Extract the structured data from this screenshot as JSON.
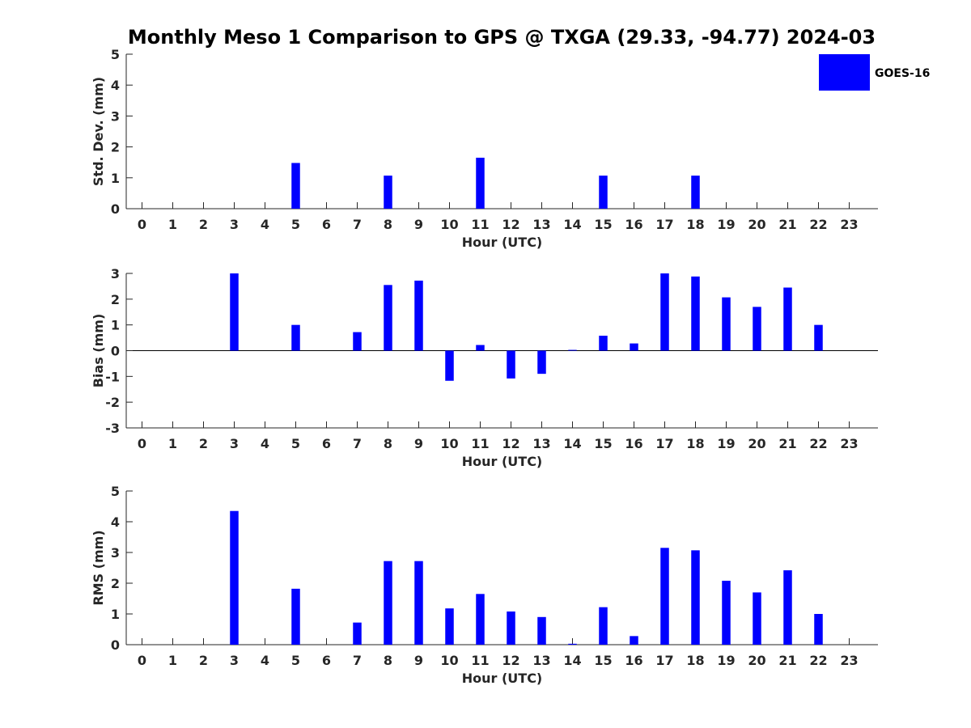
{
  "title": "Monthly Meso 1 Comparison to GPS @ TXGA (29.33, -94.77) 2024-03",
  "legend": {
    "label": "GOES-16",
    "color": "#0000ff"
  },
  "chart_data": [
    {
      "type": "bar",
      "name": "std-dev",
      "title": "Monthly Meso 1 Comparison to GPS @ TXGA (29.33, -94.77) 2024-03",
      "xlabel": "Hour (UTC)",
      "ylabel": "Std. Dev. (mm)",
      "ylim": [
        0,
        5
      ],
      "yticks": [
        "0",
        "1",
        "2",
        "3",
        "4",
        "5"
      ],
      "categories": [
        "0",
        "1",
        "2",
        "3",
        "4",
        "5",
        "6",
        "7",
        "8",
        "9",
        "10",
        "11",
        "12",
        "13",
        "14",
        "15",
        "16",
        "17",
        "18",
        "19",
        "20",
        "21",
        "22",
        "23"
      ],
      "series": [
        {
          "name": "GOES-16",
          "values": [
            null,
            null,
            null,
            0,
            null,
            1.48,
            null,
            0,
            1.07,
            0,
            null,
            1.65,
            0,
            0,
            0,
            1.07,
            0,
            0,
            1.07,
            0,
            0,
            0,
            0,
            null
          ]
        }
      ]
    },
    {
      "type": "bar",
      "name": "bias",
      "xlabel": "Hour (UTC)",
      "ylabel": "Bias (mm)",
      "ylim": [
        -3,
        3
      ],
      "yticks": [
        "-3",
        "-2",
        "-1",
        "0",
        "1",
        "2",
        "3"
      ],
      "categories": [
        "0",
        "1",
        "2",
        "3",
        "4",
        "5",
        "6",
        "7",
        "8",
        "9",
        "10",
        "11",
        "12",
        "13",
        "14",
        "15",
        "16",
        "17",
        "18",
        "19",
        "20",
        "21",
        "22",
        "23"
      ],
      "series": [
        {
          "name": "GOES-16",
          "values": [
            null,
            null,
            null,
            3.0,
            null,
            1.0,
            null,
            0.72,
            2.55,
            2.72,
            -1.17,
            0.22,
            -1.08,
            -0.9,
            0.03,
            0.58,
            0.28,
            3.0,
            2.88,
            2.07,
            1.7,
            2.45,
            1.0,
            null
          ]
        }
      ]
    },
    {
      "type": "bar",
      "name": "rms",
      "xlabel": "Hour (UTC)",
      "ylabel": "RMS (mm)",
      "ylim": [
        0,
        5
      ],
      "yticks": [
        "0",
        "1",
        "2",
        "3",
        "4",
        "5"
      ],
      "categories": [
        "0",
        "1",
        "2",
        "3",
        "4",
        "5",
        "6",
        "7",
        "8",
        "9",
        "10",
        "11",
        "12",
        "13",
        "14",
        "15",
        "16",
        "17",
        "18",
        "19",
        "20",
        "21",
        "22",
        "23"
      ],
      "series": [
        {
          "name": "GOES-16",
          "values": [
            null,
            null,
            null,
            4.35,
            null,
            1.82,
            null,
            0.72,
            2.72,
            2.72,
            1.18,
            1.65,
            1.08,
            0.9,
            0.03,
            1.22,
            0.28,
            3.15,
            3.07,
            2.08,
            1.7,
            2.42,
            1.0,
            null
          ]
        }
      ]
    }
  ]
}
